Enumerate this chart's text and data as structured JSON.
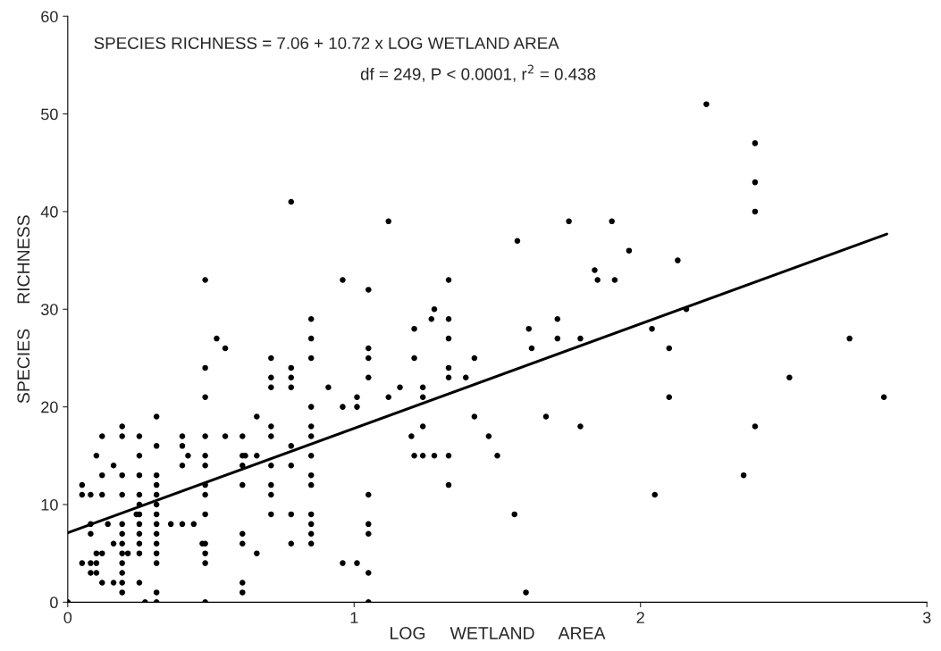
{
  "chart_data": {
    "type": "scatter",
    "xlabel": "LOG     WETLAND     AREA",
    "ylabel": "SPECIES     RICHNESS",
    "annotations": [
      "SPECIES RICHNESS = 7.06 + 10.72 x LOG WETLAND AREA",
      "df = 249, P < 0.0001, r$^{2}$ = 0.438"
    ],
    "xlim": [
      0,
      3
    ],
    "ylim": [
      0,
      60
    ],
    "xticks": [
      0,
      1,
      2,
      3
    ],
    "yticks": [
      0,
      10,
      20,
      30,
      40,
      50,
      60
    ],
    "grid": false,
    "legend": false,
    "series": [
      {
        "color": "#000000",
        "marker": "circle",
        "x": [
          0,
          0.05,
          0.05,
          0.05,
          0.08,
          0.08,
          0.08,
          0.08,
          0.08,
          0.1,
          0.1,
          0.1,
          0.1,
          0.12,
          0.12,
          0.12,
          0.12,
          0.12,
          0.14,
          0.16,
          0.16,
          0.16,
          0.19,
          0.19,
          0.19,
          0.19,
          0.19,
          0.19,
          0.19,
          0.19,
          0.19,
          0.19,
          0.19,
          0.19,
          0.21,
          0.24,
          0.25,
          0.25,
          0.25,
          0.25,
          0.25,
          0.25,
          0.25,
          0.25,
          0.25,
          0.25,
          0.25,
          0.27,
          0.31,
          0.31,
          0.31,
          0.31,
          0.31,
          0.31,
          0.31,
          0.31,
          0.31,
          0.31,
          0.31,
          0.31,
          0.31,
          0.31,
          0.36,
          0.4,
          0.4,
          0.4,
          0.4,
          0.42,
          0.44,
          0.48,
          0.48,
          0.48,
          0.48,
          0.48,
          0.48,
          0.48,
          0.48,
          0.48,
          0.48,
          0.48,
          0.48,
          0.48,
          0.47,
          0.52,
          0.55,
          0.55,
          0.61,
          0.61,
          0.62,
          0.61,
          0.61,
          0.61,
          0.61,
          0.61,
          0.61,
          0.66,
          0.66,
          0.66,
          0.71,
          0.71,
          0.71,
          0.71,
          0.71,
          0.71,
          0.71,
          0.78,
          0.78,
          0.78,
          0.78,
          0.78,
          0.91,
          1.16,
          1.01,
          1.12,
          0.85,
          0.96,
          1.01,
          0.85,
          0.85,
          0.85,
          0.85,
          0.85,
          0.85,
          0.85,
          0.85,
          0.85,
          1.2,
          1.21,
          1.05,
          1.05,
          1.05,
          1.05,
          1.05,
          0.96,
          1.01,
          1.24,
          0.71,
          0.78,
          1.05,
          0.78,
          0.71,
          0.85,
          1.05,
          1.21,
          0.85,
          1.05,
          0.85,
          1.21,
          1.27,
          1.05,
          0.96,
          1.12,
          0.78,
          1.75,
          1.9,
          1.57,
          1.96,
          1.84,
          1.85,
          1.91,
          1.33,
          1.28,
          1.33,
          1.71,
          1.61,
          2.04,
          1.33,
          1.71,
          1.79,
          1.62,
          2.1,
          1.42,
          1.33,
          1.33,
          1.39,
          1.24,
          2.1,
          1.42,
          1.67,
          1.24,
          1.79,
          1.47,
          1.24,
          1.28,
          1.33,
          1.5,
          1.33,
          2.05,
          1.56,
          1.6,
          2.13,
          2.16,
          2.23,
          2.4,
          2.4,
          2.4,
          2.73,
          2.52,
          2.85,
          2.4,
          2.36
        ],
        "values": [
          0,
          12,
          11,
          4,
          11,
          8,
          7,
          4,
          3,
          15,
          5,
          4,
          3,
          17,
          13,
          11,
          5,
          2,
          8,
          14,
          6,
          2,
          18,
          17,
          13,
          11,
          8,
          7,
          6,
          5,
          4,
          3,
          2,
          1,
          5,
          9,
          17,
          15,
          13,
          11,
          10,
          9,
          8,
          7,
          6,
          5,
          2,
          0,
          19,
          16,
          13,
          12,
          11,
          10,
          9,
          8,
          7,
          6,
          5,
          4,
          1,
          0,
          8,
          17,
          16,
          14,
          8,
          15,
          8,
          33,
          24,
          21,
          17,
          15,
          14,
          12,
          11,
          9,
          6,
          5,
          4,
          0,
          6,
          27,
          26,
          17,
          17,
          15,
          15,
          14,
          12,
          7,
          6,
          2,
          1,
          19,
          15,
          5,
          22,
          18,
          17,
          14,
          12,
          11,
          9,
          22,
          16,
          14,
          9,
          6,
          22,
          22,
          21,
          21,
          20,
          20,
          20,
          18,
          17,
          15,
          13,
          12,
          9,
          8,
          7,
          6,
          17,
          15,
          11,
          8,
          7,
          3,
          0,
          4,
          4,
          22,
          23,
          23,
          23,
          24,
          25,
          25,
          25,
          25,
          27,
          26,
          29,
          28,
          29,
          32,
          33,
          39,
          41,
          39,
          39,
          37,
          36,
          34,
          33,
          33,
          33,
          30,
          29,
          29,
          28,
          28,
          27,
          27,
          27,
          26,
          26,
          25,
          24,
          23,
          23,
          21,
          21,
          19,
          19,
          18,
          18,
          17,
          15,
          15,
          15,
          15,
          12,
          11,
          9,
          1,
          35,
          30,
          51,
          47,
          43,
          40,
          27,
          23,
          21,
          18,
          13
        ]
      },
      {
        "type": "line",
        "color": "#000000",
        "line_style": "solid",
        "x": [
          0,
          2.86
        ],
        "values": [
          7.1,
          37.7
        ]
      }
    ]
  }
}
